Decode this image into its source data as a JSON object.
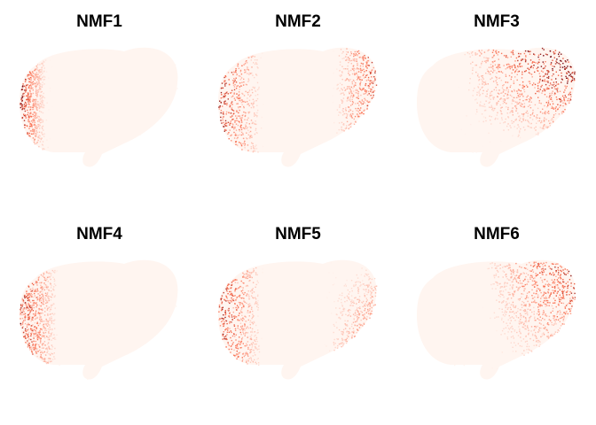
{
  "panels": [
    {
      "title": "NMF1",
      "hotspot": "left"
    },
    {
      "title": "NMF2",
      "hotspot": "left-right"
    },
    {
      "title": "NMF3",
      "hotspot": "upper-right"
    },
    {
      "title": "NMF4",
      "hotspot": "left-sparse"
    },
    {
      "title": "NMF5",
      "hotspot": "left-right-lower"
    },
    {
      "title": "NMF6",
      "hotspot": "upper-right-sparse"
    }
  ],
  "colors": {
    "low": "#fff5f0",
    "mid": "#fb6a4a",
    "high": "#67000d"
  }
}
